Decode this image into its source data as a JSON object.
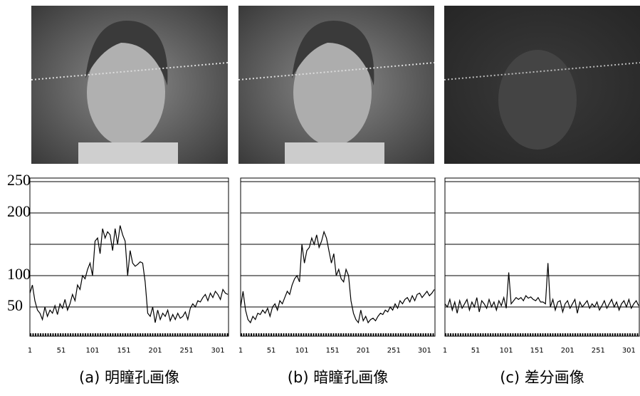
{
  "chart_data": [
    {
      "type": "line",
      "caption": "(a) 明瞳孔画像",
      "x": [
        1,
        5,
        9,
        13,
        17,
        21,
        25,
        29,
        33,
        37,
        41,
        45,
        49,
        53,
        57,
        61,
        65,
        69,
        73,
        77,
        81,
        85,
        89,
        93,
        97,
        101,
        105,
        109,
        113,
        117,
        121,
        125,
        129,
        133,
        137,
        141,
        145,
        149,
        153,
        157,
        161,
        165,
        169,
        173,
        177,
        181,
        185,
        189,
        193,
        197,
        201,
        205,
        209,
        213,
        217,
        221,
        225,
        229,
        233,
        237,
        241,
        245,
        249,
        253,
        257,
        261,
        265,
        269,
        273,
        277,
        281,
        285,
        289,
        293,
        297,
        301,
        305,
        309,
        313,
        317
      ],
      "series": [
        {
          "color": "#000000",
          "values": [
            72,
            85,
            60,
            45,
            40,
            30,
            50,
            35,
            45,
            40,
            52,
            38,
            55,
            48,
            62,
            45,
            55,
            70,
            60,
            85,
            78,
            100,
            95,
            110,
            120,
            100,
            155,
            160,
            135,
            175,
            160,
            170,
            165,
            140,
            175,
            150,
            180,
            165,
            155,
            100,
            140,
            120,
            115,
            118,
            122,
            120,
            90,
            40,
            35,
            50,
            25,
            45,
            30,
            40,
            35,
            45,
            28,
            38,
            30,
            40,
            32,
            35,
            42,
            30,
            48,
            55,
            50,
            60,
            58,
            65,
            70,
            60,
            72,
            65,
            75,
            70,
            62,
            78,
            72,
            70
          ]
        }
      ],
      "xlim": [
        1,
        318
      ],
      "ylim": [
        0,
        250
      ],
      "xticks": [
        1,
        51,
        101,
        151,
        201,
        251,
        301
      ],
      "yticks": [
        50,
        100,
        200,
        250
      ],
      "grid_lines": [
        50,
        100,
        150,
        200,
        250
      ]
    },
    {
      "type": "line",
      "caption": "(b) 暗瞳孔画像",
      "x": [
        1,
        5,
        9,
        13,
        17,
        21,
        25,
        29,
        33,
        37,
        41,
        45,
        49,
        53,
        57,
        61,
        65,
        69,
        73,
        77,
        81,
        85,
        89,
        93,
        97,
        101,
        105,
        109,
        113,
        117,
        121,
        125,
        129,
        133,
        137,
        141,
        145,
        149,
        153,
        157,
        161,
        165,
        169,
        173,
        177,
        181,
        185,
        189,
        193,
        197,
        201,
        205,
        209,
        213,
        217,
        221,
        225,
        229,
        233,
        237,
        241,
        245,
        249,
        253,
        257,
        261,
        265,
        269,
        273,
        277,
        281,
        285,
        289,
        293,
        297,
        301,
        305,
        309,
        313,
        317
      ],
      "series": [
        {
          "color": "#000000",
          "values": [
            50,
            75,
            45,
            30,
            25,
            35,
            30,
            40,
            38,
            45,
            40,
            48,
            35,
            50,
            55,
            45,
            60,
            55,
            65,
            75,
            70,
            85,
            95,
            100,
            90,
            150,
            120,
            140,
            145,
            160,
            150,
            165,
            145,
            155,
            170,
            160,
            140,
            120,
            135,
            100,
            110,
            95,
            90,
            110,
            100,
            60,
            40,
            30,
            25,
            45,
            28,
            35,
            25,
            30,
            32,
            28,
            35,
            40,
            38,
            45,
            42,
            50,
            45,
            55,
            48,
            60,
            55,
            62,
            65,
            58,
            68,
            60,
            70,
            72,
            65,
            70,
            75,
            68,
            72,
            78
          ]
        }
      ],
      "xlim": [
        1,
        318
      ],
      "ylim": [
        0,
        250
      ],
      "xticks": [
        1,
        51,
        101,
        151,
        201,
        251,
        301
      ],
      "grid_lines": [
        50,
        100,
        150,
        200,
        250
      ]
    },
    {
      "type": "line",
      "caption": "(c) 差分画像",
      "x": [
        1,
        5,
        9,
        13,
        17,
        21,
        25,
        29,
        33,
        37,
        41,
        45,
        49,
        53,
        57,
        61,
        65,
        69,
        73,
        77,
        81,
        85,
        89,
        93,
        97,
        101,
        105,
        109,
        113,
        117,
        121,
        125,
        129,
        133,
        137,
        141,
        145,
        149,
        153,
        157,
        161,
        165,
        169,
        173,
        177,
        181,
        185,
        189,
        193,
        197,
        201,
        205,
        209,
        213,
        217,
        221,
        225,
        229,
        233,
        237,
        241,
        245,
        249,
        253,
        257,
        261,
        265,
        269,
        273,
        277,
        281,
        285,
        289,
        293,
        297,
        301,
        305,
        309,
        313,
        317
      ],
      "series": [
        {
          "color": "#000000",
          "values": [
            55,
            50,
            62,
            45,
            58,
            40,
            60,
            48,
            55,
            62,
            45,
            58,
            50,
            65,
            42,
            60,
            55,
            48,
            62,
            50,
            58,
            45,
            60,
            52,
            65,
            48,
            105,
            55,
            60,
            65,
            62,
            65,
            60,
            68,
            64,
            66,
            62,
            60,
            65,
            58,
            58,
            55,
            120,
            50,
            62,
            45,
            58,
            60,
            42,
            55,
            60,
            48,
            55,
            62,
            40,
            58,
            50,
            55,
            60,
            48,
            55,
            50,
            58,
            45,
            52,
            60,
            48,
            55,
            62,
            50,
            58,
            45,
            55,
            60,
            50,
            62,
            48,
            55,
            60,
            52
          ]
        }
      ],
      "xlim": [
        1,
        318
      ],
      "ylim": [
        0,
        250
      ],
      "xticks": [
        1,
        51,
        101,
        151,
        201,
        251,
        301
      ],
      "grid_lines": [
        50,
        100,
        150,
        200,
        250
      ]
    }
  ]
}
